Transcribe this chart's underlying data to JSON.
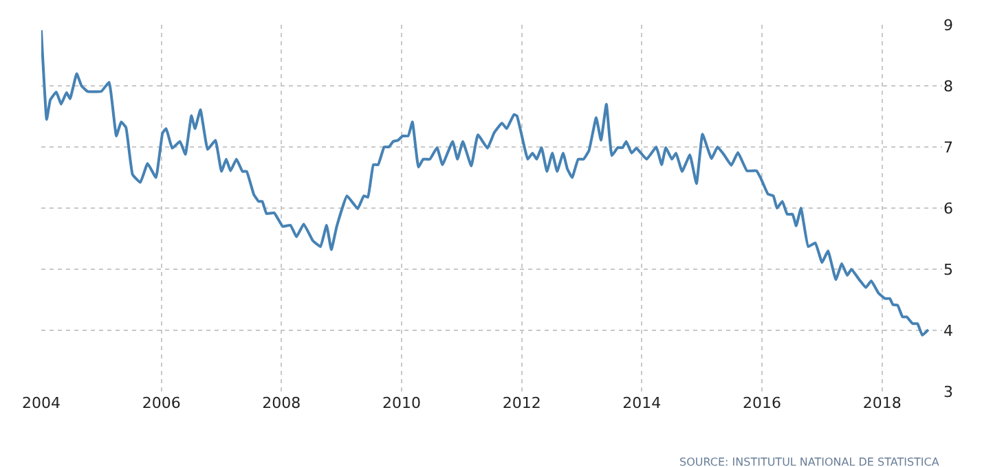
{
  "chart_data": {
    "type": "line",
    "x": [
      2004.0,
      2004.09,
      2004.15,
      2004.25,
      2004.33,
      2004.42,
      2004.48,
      2004.59,
      2004.67,
      2004.77,
      2005.0,
      2005.13,
      2005.25,
      2005.33,
      2005.41,
      2005.52,
      2005.65,
      2005.77,
      2005.91,
      2006.02,
      2006.08,
      2006.18,
      2006.31,
      2006.4,
      2006.5,
      2006.56,
      2006.65,
      2006.77,
      2006.9,
      2007.0,
      2007.08,
      2007.15,
      2007.25,
      2007.35,
      2007.42,
      2007.54,
      2007.62,
      2007.68,
      2007.75,
      2007.88,
      2008.02,
      2008.15,
      2008.25,
      2008.37,
      2008.52,
      2008.65,
      2008.75,
      2008.83,
      2008.92,
      2009.09,
      2009.27,
      2009.37,
      2009.44,
      2009.53,
      2009.61,
      2009.71,
      2009.79,
      2009.86,
      2009.94,
      2010.02,
      2010.11,
      2010.18,
      2010.28,
      2010.36,
      2010.47,
      2010.59,
      2010.68,
      2010.85,
      2010.93,
      2011.02,
      2011.16,
      2011.27,
      2011.43,
      2011.54,
      2011.67,
      2011.75,
      2011.87,
      2011.92,
      2012.1,
      2012.18,
      2012.25,
      2012.33,
      2012.42,
      2012.51,
      2012.59,
      2012.69,
      2012.76,
      2012.84,
      2012.94,
      2013.03,
      2013.12,
      2013.24,
      2013.32,
      2013.41,
      2013.5,
      2013.6,
      2013.68,
      2013.74,
      2013.83,
      2013.91,
      2014.08,
      2014.24,
      2014.33,
      2014.4,
      2014.5,
      2014.57,
      2014.67,
      2014.8,
      2014.91,
      2015.01,
      2015.16,
      2015.26,
      2015.37,
      2015.49,
      2015.6,
      2015.75,
      2015.91,
      2015.98,
      2016.1,
      2016.19,
      2016.25,
      2016.34,
      2016.42,
      2016.51,
      2016.57,
      2016.65,
      2016.77,
      2016.89,
      2017.0,
      2017.1,
      2017.23,
      2017.33,
      2017.42,
      2017.49,
      2017.62,
      2017.73,
      2017.82,
      2017.94,
      2018.05,
      2018.13,
      2018.18,
      2018.26,
      2018.34,
      2018.41,
      2018.51,
      2018.59,
      2018.67,
      2018.77
    ],
    "series": [
      {
        "color": "#4682b4",
        "values": [
          8.91,
          7.45,
          7.77,
          7.9,
          7.7,
          7.89,
          7.79,
          8.2,
          8.0,
          7.91,
          7.91,
          8.06,
          7.18,
          7.41,
          7.32,
          6.55,
          6.42,
          6.73,
          6.5,
          7.23,
          7.3,
          6.98,
          7.09,
          6.88,
          7.51,
          7.3,
          7.61,
          6.96,
          7.11,
          6.6,
          6.8,
          6.61,
          6.8,
          6.6,
          6.6,
          6.22,
          6.11,
          6.11,
          5.91,
          5.92,
          5.7,
          5.72,
          5.53,
          5.74,
          5.47,
          5.37,
          5.72,
          5.32,
          5.7,
          6.2,
          5.99,
          6.2,
          6.18,
          6.71,
          6.71,
          7.0,
          7.0,
          7.09,
          7.11,
          7.18,
          7.18,
          7.41,
          6.67,
          6.8,
          6.8,
          6.99,
          6.71,
          7.09,
          6.8,
          7.09,
          6.69,
          7.2,
          6.98,
          7.23,
          7.39,
          7.3,
          7.53,
          7.51,
          6.8,
          6.9,
          6.8,
          6.99,
          6.6,
          6.9,
          6.6,
          6.9,
          6.64,
          6.5,
          6.8,
          6.8,
          6.94,
          7.48,
          7.11,
          7.7,
          6.86,
          6.99,
          6.99,
          7.09,
          6.9,
          6.98,
          6.8,
          7.0,
          6.71,
          6.99,
          6.8,
          6.9,
          6.6,
          6.87,
          6.4,
          7.21,
          6.81,
          7.0,
          6.87,
          6.7,
          6.91,
          6.61,
          6.61,
          6.49,
          6.23,
          6.2,
          6.0,
          6.11,
          5.9,
          5.9,
          5.71,
          6.0,
          5.37,
          5.43,
          5.11,
          5.3,
          4.83,
          5.09,
          4.9,
          5.0,
          4.83,
          4.7,
          4.81,
          4.61,
          4.52,
          4.52,
          4.42,
          4.41,
          4.22,
          4.22,
          4.11,
          4.11,
          3.92,
          4.01
        ]
      }
    ],
    "xlim": [
      2004,
      2019
    ],
    "xticks": [
      2004,
      2006,
      2008,
      2010,
      2012,
      2014,
      2016,
      2018
    ],
    "ylim": [
      3,
      9
    ],
    "yticks": [
      3,
      4,
      5,
      6,
      7,
      8,
      9
    ],
    "grid": true,
    "legend": false,
    "annotations": [
      "SOURCE: INSTITUTUL NATIONAL DE STATISTICA"
    ]
  }
}
